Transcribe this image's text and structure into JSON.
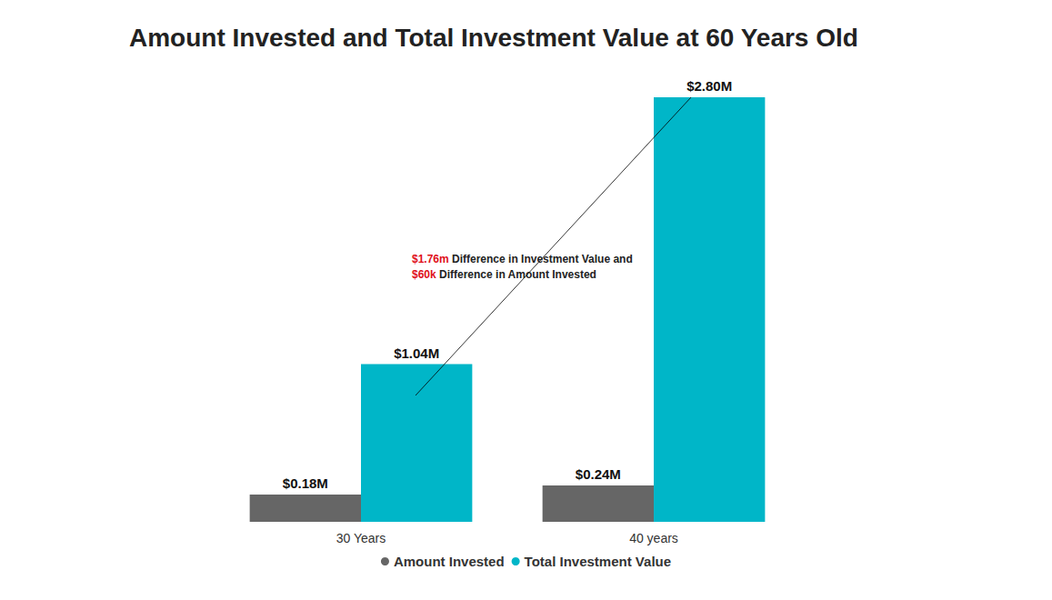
{
  "chart_data": {
    "type": "bar",
    "title": "Amount Invested and Total Investment Value at 60 Years Old",
    "categories": [
      "30 Years",
      "40 years"
    ],
    "series": [
      {
        "name": "Amount Invested",
        "color": "#666666",
        "values": [
          180000,
          240000
        ],
        "value_labels": [
          "$0.18M",
          "$0.24M"
        ]
      },
      {
        "name": "Total Investment Value",
        "color": "#00B6C8",
        "values": [
          1040000,
          2800000
        ],
        "value_labels": [
          "$1.04M",
          "$2.80M"
        ]
      }
    ],
    "ylim": [
      0,
      2800000
    ],
    "grid": false,
    "tick_labels": "x",
    "data_labels": true,
    "legend": "bottom",
    "annotations": [
      [
        {
          "text": "$1.76m",
          "color": "#E0101A"
        },
        {
          "text": " Difference in Investment Value and",
          "color": "#222222"
        }
      ],
      [
        {
          "text": "$60k",
          "color": "#E0101A"
        },
        {
          "text": " Difference in Amount Invested",
          "color": "#222222"
        }
      ]
    ]
  }
}
